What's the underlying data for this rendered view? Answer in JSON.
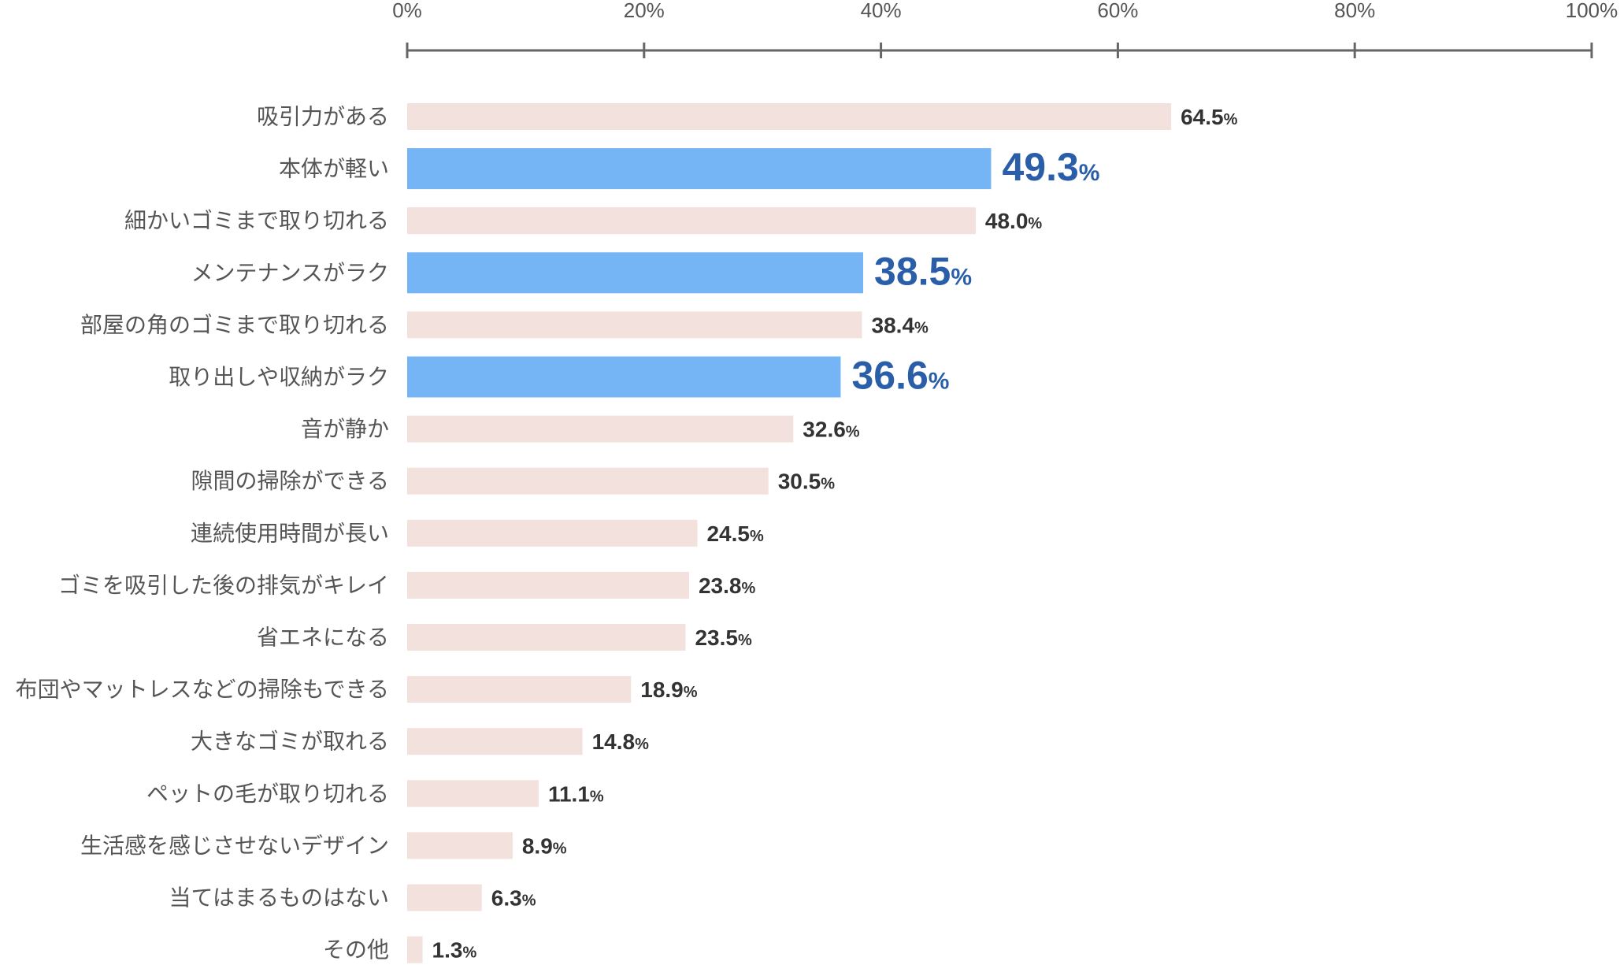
{
  "chart_data": {
    "type": "bar",
    "orientation": "horizontal",
    "categories": [
      "吸引力がある",
      "本体が軽い",
      "細かいゴミまで取り切れる",
      "メンテナンスがラク",
      "部屋の角のゴミまで取り切れる",
      "取り出しや収納がラク",
      "音が静か",
      "隙間の掃除ができる",
      "連続使用時間が長い",
      "ゴミを吸引した後の排気がキレイ",
      "省エネになる",
      "布団やマットレスなどの掃除もできる",
      "大きなゴミが取れる",
      "ペットの毛が取り切れる",
      "生活感を感じさせないデザイン",
      "当てはまるものはない",
      "その他"
    ],
    "values": [
      64.5,
      49.3,
      48.0,
      38.5,
      38.4,
      36.6,
      32.6,
      30.5,
      24.5,
      23.8,
      23.5,
      18.9,
      14.8,
      11.1,
      8.9,
      6.3,
      1.3
    ],
    "value_labels": [
      "64.5",
      "49.3",
      "48.0",
      "38.5",
      "38.4",
      "36.6",
      "32.6",
      "30.5",
      "24.5",
      "23.8",
      "23.5",
      "18.9",
      "14.8",
      "11.1",
      "8.9",
      "6.3",
      "1.3"
    ],
    "value_suffix": "%",
    "highlighted": [
      false,
      true,
      false,
      true,
      false,
      true,
      false,
      false,
      false,
      false,
      false,
      false,
      false,
      false,
      false,
      false,
      false
    ],
    "x_ticks": [
      "0%",
      "20%",
      "40%",
      "60%",
      "80%",
      "100%"
    ],
    "xlim": [
      0,
      100
    ],
    "axis_position": "top",
    "grid": false,
    "colors": {
      "bar": "#f3e1dd",
      "bar_highlight": "#76b5f5",
      "label_highlight": "#2a5ea9",
      "label": "#333333",
      "axis": "#666666"
    }
  }
}
